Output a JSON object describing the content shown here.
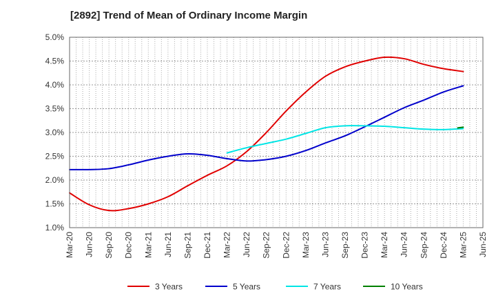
{
  "chart_data": {
    "type": "line",
    "title": "[2892]  Trend of Mean of Ordinary Income Margin",
    "xlabel": "",
    "ylabel": "",
    "x": [
      "Mar-20",
      "Jun-20",
      "Sep-20",
      "Dec-20",
      "Mar-21",
      "Jun-21",
      "Sep-21",
      "Dec-21",
      "Mar-22",
      "Jun-22",
      "Sep-22",
      "Dec-22",
      "Mar-23",
      "Jun-23",
      "Sep-23",
      "Dec-23",
      "Mar-24",
      "Jun-24",
      "Sep-24",
      "Dec-24",
      "Mar-25",
      "Jun-25"
    ],
    "y_ticks": [
      "1.0%",
      "1.5%",
      "2.0%",
      "2.5%",
      "3.0%",
      "3.5%",
      "4.0%",
      "4.5%",
      "5.0%"
    ],
    "ylim": [
      1.0,
      5.0
    ],
    "unit": "%",
    "grid": true,
    "legend_position": "bottom",
    "series": [
      {
        "name": "3 Years",
        "color": "#e00000",
        "values": [
          1.73,
          1.48,
          1.36,
          1.4,
          1.5,
          1.65,
          1.88,
          2.1,
          2.3,
          2.6,
          3.0,
          3.45,
          3.85,
          4.18,
          4.38,
          4.5,
          4.58,
          4.55,
          4.43,
          4.34,
          4.28,
          null
        ]
      },
      {
        "name": "5 Years",
        "color": "#0000cc",
        "values": [
          2.22,
          2.22,
          2.24,
          2.32,
          2.42,
          2.5,
          2.55,
          2.52,
          2.45,
          2.4,
          2.43,
          2.5,
          2.62,
          2.78,
          2.93,
          3.12,
          3.32,
          3.52,
          3.68,
          3.85,
          3.98,
          null
        ]
      },
      {
        "name": "7 Years",
        "color": "#00e5e5",
        "values": [
          null,
          null,
          null,
          null,
          null,
          null,
          null,
          null,
          2.57,
          2.68,
          2.77,
          2.86,
          2.98,
          3.1,
          3.14,
          3.14,
          3.13,
          3.1,
          3.07,
          3.06,
          3.08,
          null
        ]
      },
      {
        "name": "10 Years",
        "color": "#007f00",
        "values": [
          null,
          null,
          null,
          null,
          null,
          null,
          null,
          null,
          null,
          null,
          null,
          null,
          null,
          null,
          null,
          null,
          null,
          null,
          null,
          null,
          3.11,
          null
        ]
      }
    ]
  }
}
